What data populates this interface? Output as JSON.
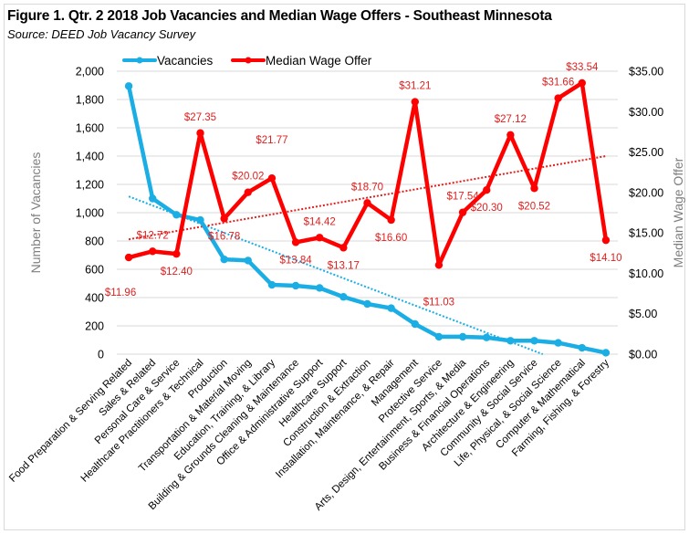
{
  "chart_data": {
    "type": "line",
    "title": "Figure 1. Qtr. 2 2018 Job Vacancies and Median Wage Offers - Southeast Minnesota",
    "subtitle": "Source: DEED Job Vacancy Survey",
    "ylabel": "Number of Vacancies",
    "y2label": "Median Wage Offer",
    "xlabel": "",
    "ylim": [
      0,
      2000
    ],
    "y2lim": [
      0,
      35
    ],
    "yticks": [
      "0",
      "200",
      "400",
      "600",
      "800",
      "1,000",
      "1,200",
      "1,400",
      "1,600",
      "1,800",
      "2,000"
    ],
    "y2ticks": [
      "$0.00",
      "$5.00",
      "$10.00",
      "$15.00",
      "$20.00",
      "$25.00",
      "$30.00",
      "$35.00"
    ],
    "grid": true,
    "legend_position": "top-left",
    "categories": [
      "Food Preparation & Serving Related",
      "Sales & Related",
      "Personal Care & Service",
      "Healthcare Practitioners & Technical",
      "Production",
      "Transportation & Material Moving",
      "Education, Training, & Library",
      "Building & Grounds Cleaning & Maintenance",
      "Office & Administrative Support",
      "Healthcare Support",
      "Construction & Extraction",
      "Installation, Maintenance, & Repair",
      "Management",
      "Protective Service",
      "Arts, Design, Entertainment, Sports, & Media",
      "Business & Financial Operations",
      "Architecture & Engineering",
      "Community & Social Service",
      "Life, Physical, & Social Science",
      "Computer & Mathematical",
      "Farming, Fishing, & Forestry"
    ],
    "series": [
      {
        "name": "Vacancies",
        "axis": "left",
        "color": "#1aaee5",
        "values": [
          1895,
          1100,
          985,
          948,
          670,
          662,
          490,
          484,
          468,
          405,
          355,
          325,
          213,
          123,
          123,
          118,
          95,
          95,
          80,
          45,
          10
        ],
        "trendline": {
          "type": "linear",
          "color": "#1aaee5",
          "style": "dotted",
          "start": 1115,
          "end": -170
        }
      },
      {
        "name": "Median Wage Offer",
        "axis": "right",
        "color": "#ff0000",
        "values": [
          11.96,
          12.72,
          12.4,
          27.35,
          16.78,
          20.02,
          21.77,
          13.84,
          14.42,
          13.17,
          18.7,
          16.6,
          31.21,
          11.03,
          17.54,
          20.3,
          27.12,
          20.52,
          31.66,
          33.54,
          14.1
        ],
        "data_labels": [
          "$11.96",
          "$12.72",
          "$12.40",
          "$27.35",
          "$16.78",
          "$20.02",
          "$21.77",
          "$13.84",
          "$14.42",
          "$13.17",
          "$18.70",
          "$16.60",
          "$31.21",
          "$11.03",
          "$17.54",
          "$20.30",
          "$27.12",
          "$20.52",
          "$31.66",
          "$33.54",
          "$14.10"
        ],
        "label_placement": [
          "below-left",
          "above",
          "below",
          "above",
          "below",
          "above",
          "above-high",
          "below",
          "above",
          "below",
          "above",
          "below",
          "above",
          "below-far",
          "above",
          "below",
          "above",
          "below",
          "above",
          "above",
          "below"
        ],
        "trendline": {
          "type": "linear",
          "color": "#e0201f",
          "style": "dotted",
          "start": 14.2,
          "end": 24.5
        }
      }
    ]
  },
  "legend": {
    "items": [
      {
        "label": "Vacancies",
        "color": "#1aaee5"
      },
      {
        "label": "Median Wage Offer",
        "color": "#ff0000"
      }
    ]
  }
}
